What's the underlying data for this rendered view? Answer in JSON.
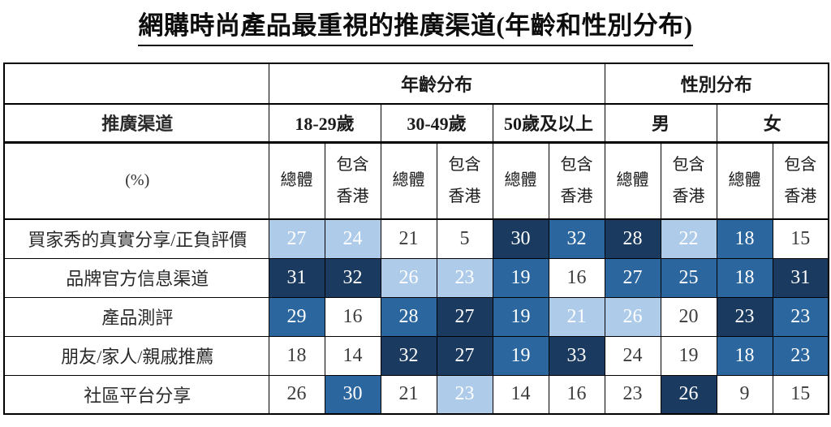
{
  "page_title": "網購時尚產品最重視的推廣渠道(年齡和性別分布)",
  "header": {
    "channel": "推廣渠道",
    "unit": "(%)",
    "age_group": "年齡分布",
    "gender_group": "性別分布",
    "age_ranges": [
      "18-29歲",
      "30-49歲",
      "50歲及以上"
    ],
    "genders": [
      "男",
      "女"
    ],
    "measure_total": "總體",
    "measure_incl_hk_line1": "包含",
    "measure_incl_hk_line2": "香港"
  },
  "chart_data": {
    "type": "heatmap",
    "title": "網購時尚產品最重視的推廣渠道(年齡和性別分布)",
    "unit": "%",
    "column_groups": [
      {
        "group": "年齡分布",
        "subgroups": [
          "18-29歲",
          "30-49歲",
          "50歲及以上"
        ]
      },
      {
        "group": "性別分布",
        "subgroups": [
          "男",
          "女"
        ]
      }
    ],
    "columns": [
      "18-29歲 總體",
      "18-29歲 包含香港",
      "30-49歲 總體",
      "30-49歲 包含香港",
      "50歲及以上 總體",
      "50歲及以上 包含香港",
      "男 總體",
      "男 包含香港",
      "女 總體",
      "女 包含香港"
    ],
    "rows": [
      {
        "label": "買家秀的真實分享/正負評價",
        "values": [
          27,
          24,
          21,
          5,
          30,
          32,
          28,
          22,
          18,
          15
        ],
        "shades": [
          "light",
          "light",
          "white",
          "white",
          "dark",
          "medium",
          "dark",
          "light",
          "medium",
          "white"
        ]
      },
      {
        "label": "品牌官方信息渠道",
        "values": [
          31,
          32,
          26,
          23,
          19,
          16,
          27,
          25,
          18,
          31
        ],
        "shades": [
          "dark",
          "dark",
          "light",
          "light",
          "medium",
          "white",
          "medium",
          "medium",
          "medium",
          "dark"
        ]
      },
      {
        "label": "產品測評",
        "values": [
          29,
          16,
          28,
          27,
          19,
          21,
          26,
          20,
          23,
          23
        ],
        "shades": [
          "medium",
          "white",
          "medium",
          "dark",
          "medium",
          "light",
          "light",
          "white",
          "dark",
          "medium"
        ]
      },
      {
        "label": "朋友/家人/親戚推薦",
        "values": [
          18,
          14,
          32,
          27,
          19,
          33,
          24,
          19,
          18,
          23
        ],
        "shades": [
          "white",
          "white",
          "dark",
          "dark",
          "medium",
          "dark",
          "white",
          "white",
          "medium",
          "medium"
        ]
      },
      {
        "label": "社區平台分享",
        "values": [
          26,
          30,
          21,
          23,
          14,
          16,
          23,
          26,
          9,
          15
        ],
        "shades": [
          "white",
          "medium",
          "white",
          "light",
          "white",
          "white",
          "white",
          "dark",
          "white",
          "white"
        ]
      }
    ],
    "shade_colors": {
      "white": "#FFFFFF",
      "light": "#AECBE9",
      "medium": "#2B669E",
      "dark": "#1B3A60"
    },
    "value_text_colors": {
      "on_white": "#3C3C3C",
      "on_color": "#FFFFFF"
    },
    "layout": {
      "grid": "table",
      "legend": "none"
    }
  }
}
